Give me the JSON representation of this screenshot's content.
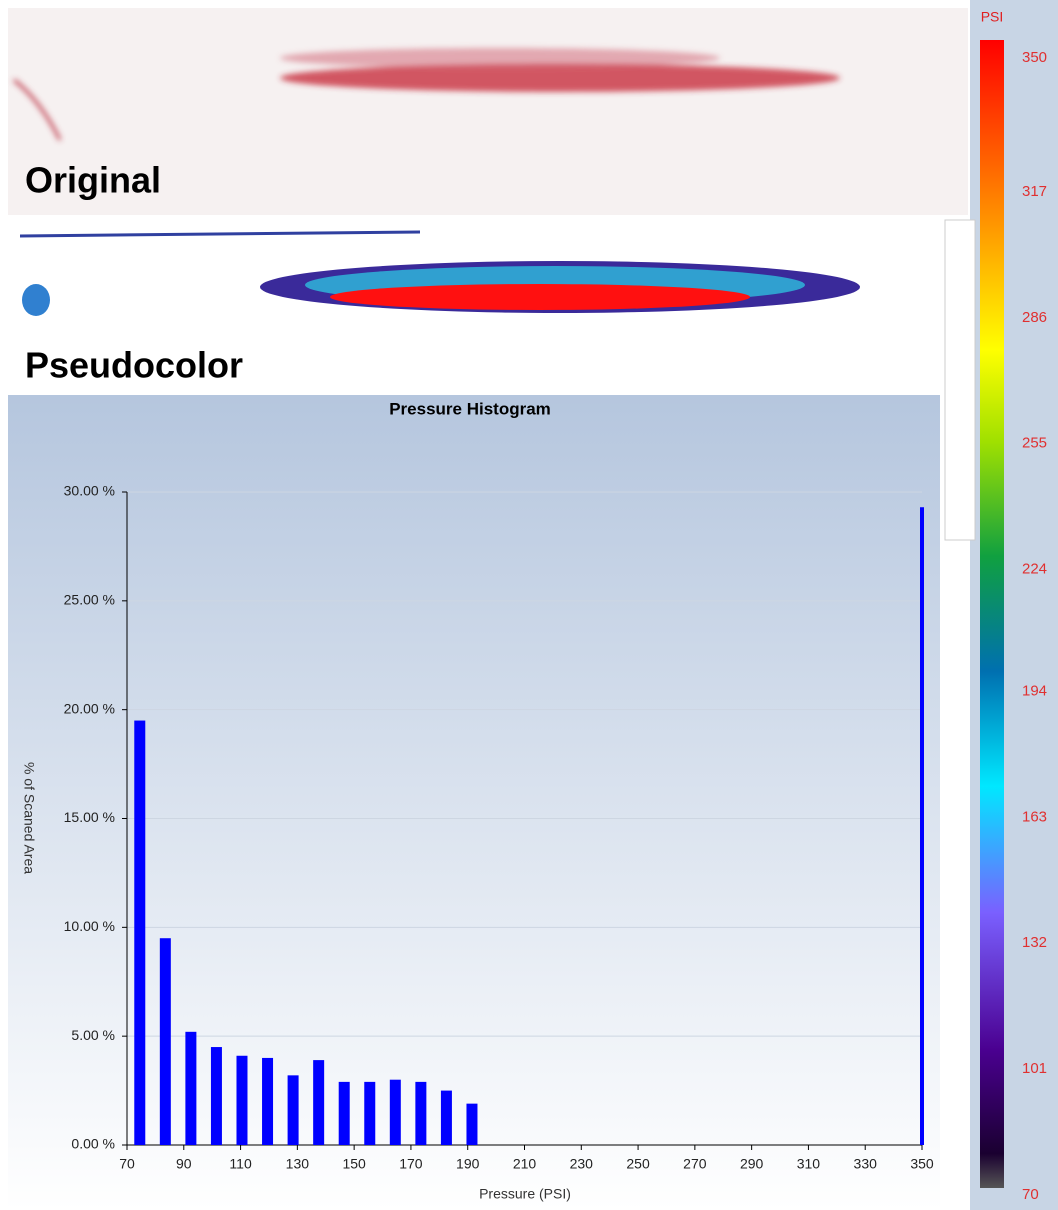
{
  "panels": {
    "original": "Original",
    "pseudocolor": "Pseudocolor"
  },
  "colorbar": {
    "title": "PSI",
    "lim": [
      70,
      350
    ],
    "ticks": [
      350,
      317,
      286,
      255,
      224,
      194,
      163,
      132,
      101,
      70
    ]
  },
  "chart_data": {
    "type": "bar",
    "title": "Pressure Histogram",
    "x_label": "Pressure  (PSI)",
    "y_label": "% of Scaned Area",
    "x": [
      74.5,
      83.5,
      92.5,
      101.5,
      110.5,
      119.5,
      128.5,
      137.5,
      146.5,
      155.5,
      164.5,
      173.5,
      182.5,
      191.5,
      350
    ],
    "values": [
      19.5,
      9.5,
      5.2,
      4.5,
      4.1,
      4.0,
      3.2,
      3.9,
      2.9,
      2.9,
      3.0,
      2.9,
      2.5,
      1.9,
      29.3
    ],
    "color": "#0000ff",
    "xlim": [
      70,
      350
    ],
    "xticks": [
      70,
      90,
      110,
      130,
      150,
      170,
      190,
      210,
      230,
      250,
      270,
      290,
      310,
      330,
      350
    ],
    "ylim": [
      0,
      30
    ],
    "yticks": [
      {
        "value": 0,
        "label": "0.00 %"
      },
      {
        "value": 5,
        "label": "5.00 %"
      },
      {
        "value": 10,
        "label": "10.00 %"
      },
      {
        "value": 15,
        "label": "15.00 %"
      },
      {
        "value": 20,
        "label": "20.00 %"
      },
      {
        "value": 25,
        "label": "25.00 %"
      },
      {
        "value": 30,
        "label": "30.00 %"
      }
    ],
    "grid": true
  }
}
